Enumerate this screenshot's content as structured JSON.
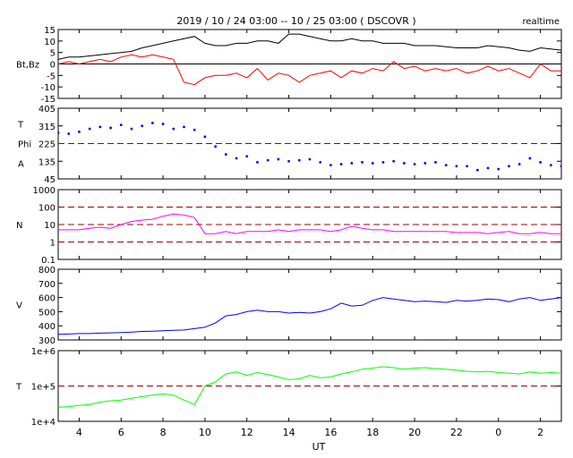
{
  "title": "2019 / 10 / 24   03:00 -- 10 / 25   03:00 ( DSCOVR )",
  "mode": "realtime",
  "x_axis": {
    "label": "UT",
    "tick_labels": [
      "4",
      "6",
      "8",
      "10",
      "12",
      "14",
      "16",
      "18",
      "20",
      "22",
      "0",
      "2"
    ],
    "tick_hours": [
      4,
      6,
      8,
      10,
      12,
      14,
      16,
      18,
      20,
      22,
      24,
      26
    ],
    "range_hours": [
      3,
      27
    ]
  },
  "colors": {
    "bt": "#000000",
    "bz": "#ff0000",
    "phi": "#0000ff",
    "density": "#ff00ff",
    "speed": "#0000ff",
    "temperature": "#00ff00",
    "reference_line": "#a00000",
    "axis": "#000000"
  },
  "chart_data": [
    {
      "type": "line",
      "panel": "magnetic-field",
      "ylabel": "Bt,Bz",
      "ylim": [
        -15,
        15
      ],
      "y_scale": "linear",
      "tick_labels": [
        "15",
        "10",
        "5",
        "0",
        "-5",
        "-10",
        "-15"
      ],
      "tick_values": [
        15,
        10,
        5,
        0,
        -5,
        -10,
        -15
      ],
      "reference_lines": [
        {
          "value": 0,
          "style": "solid"
        }
      ],
      "series": [
        {
          "key": "bt",
          "x": [
            3,
            3.5,
            4,
            4.5,
            5,
            5.5,
            6,
            6.5,
            7,
            7.5,
            8,
            8.5,
            9,
            9.5,
            10,
            10.5,
            11,
            11.5,
            12,
            12.5,
            13,
            13.5,
            14,
            14.5,
            15,
            15.5,
            16,
            16.5,
            17,
            17.5,
            18,
            18.5,
            19,
            19.5,
            20,
            20.5,
            21,
            21.5,
            22,
            22.5,
            23,
            23.5,
            24,
            24.5,
            25,
            25.5,
            26,
            26.5,
            27
          ],
          "values": [
            2,
            3,
            3,
            3.5,
            4,
            4.5,
            5,
            5.5,
            7,
            8,
            9,
            10,
            11,
            12,
            9,
            8,
            8,
            9,
            9,
            10,
            10,
            9,
            13,
            13,
            12,
            11,
            10,
            10,
            11,
            10,
            10,
            9,
            9,
            9,
            8,
            8,
            8,
            7.5,
            7,
            7,
            7,
            8,
            7.5,
            7,
            6,
            5.5,
            7,
            6.5,
            6
          ]
        },
        {
          "key": "bz",
          "x": [
            3,
            3.5,
            4,
            4.5,
            5,
            5.5,
            6,
            6.5,
            7,
            7.5,
            8,
            8.5,
            9,
            9.5,
            10,
            10.5,
            11,
            11.5,
            12,
            12.5,
            13,
            13.5,
            14,
            14.5,
            15,
            15.5,
            16,
            16.5,
            17,
            17.5,
            18,
            18.5,
            19,
            19.5,
            20,
            20.5,
            21,
            21.5,
            22,
            22.5,
            23,
            23.5,
            24,
            24.5,
            25,
            25.5,
            26,
            26.5,
            27
          ],
          "values": [
            0,
            1,
            0,
            1,
            2,
            1,
            3,
            4,
            3,
            4,
            3,
            2,
            -8,
            -9,
            -6,
            -5,
            -5,
            -4,
            -6,
            -2,
            -7,
            -4,
            -5,
            -8,
            -5,
            -4,
            -3,
            -6,
            -3,
            -4,
            -2,
            -3,
            1,
            -2,
            -1,
            -3,
            -2,
            -3,
            -2,
            -4,
            -3,
            -1,
            -3,
            -2,
            -4,
            -6,
            0,
            -3,
            -3
          ]
        }
      ]
    },
    {
      "type": "scatter",
      "panel": "phi-angle",
      "ylabel_lines": [
        "T",
        "Phi",
        "A"
      ],
      "ylim": [
        45,
        405
      ],
      "y_scale": "linear",
      "tick_labels": [
        "405",
        "315",
        "225",
        "135",
        "45"
      ],
      "tick_values": [
        405,
        315,
        225,
        135,
        45
      ],
      "reference_lines": [
        {
          "value": 225,
          "style": "dashed"
        }
      ],
      "series": [
        {
          "key": "phi",
          "x": [
            3,
            3.5,
            4,
            4.5,
            5,
            5.5,
            6,
            6.5,
            7,
            7.5,
            8,
            8.5,
            9,
            9.5,
            10,
            10.5,
            11,
            11.5,
            12,
            12.5,
            13,
            13.5,
            14,
            14.5,
            15,
            15.5,
            16,
            16.5,
            17,
            17.5,
            18,
            18.5,
            19,
            19.5,
            20,
            20.5,
            21,
            21.5,
            22,
            22.5,
            23,
            23.5,
            24,
            24.5,
            25,
            25.5,
            26,
            26.5,
            27
          ],
          "values": [
            280,
            275,
            285,
            300,
            310,
            305,
            320,
            300,
            315,
            330,
            325,
            300,
            310,
            295,
            260,
            210,
            170,
            150,
            160,
            130,
            140,
            145,
            135,
            140,
            145,
            130,
            115,
            120,
            125,
            130,
            125,
            130,
            135,
            125,
            120,
            125,
            130,
            115,
            110,
            110,
            90,
            100,
            95,
            110,
            120,
            150,
            130,
            115,
            110
          ]
        }
      ]
    },
    {
      "type": "line",
      "panel": "density",
      "ylabel": "N",
      "ylim": [
        0.1,
        1000
      ],
      "y_scale": "log",
      "tick_labels": [
        "1000",
        "100",
        "10",
        "1",
        "0.1"
      ],
      "tick_values": [
        1000,
        100,
        10,
        1,
        0.1
      ],
      "reference_lines": [
        {
          "value": 100,
          "style": "dashed"
        },
        {
          "value": 10,
          "style": "dashed"
        },
        {
          "value": 1,
          "style": "dashed"
        }
      ],
      "series": [
        {
          "key": "density",
          "x": [
            3,
            3.5,
            4,
            4.5,
            5,
            5.5,
            6,
            6.5,
            7,
            7.5,
            8,
            8.5,
            9,
            9.5,
            10,
            10.5,
            11,
            11.5,
            12,
            12.5,
            13,
            13.5,
            14,
            14.5,
            15,
            15.5,
            16,
            16.5,
            17,
            17.5,
            18,
            18.5,
            19,
            19.5,
            20,
            20.5,
            21,
            21.5,
            22,
            22.5,
            23,
            23.5,
            24,
            24.5,
            25,
            25.5,
            26,
            26.5,
            27
          ],
          "values": [
            5,
            5,
            5,
            6,
            7,
            6,
            10,
            15,
            18,
            20,
            30,
            40,
            35,
            25,
            3,
            3,
            4,
            3,
            4,
            4,
            4,
            5,
            4,
            5,
            5,
            5,
            4,
            5,
            8,
            6,
            5,
            5,
            4,
            4,
            4,
            4,
            4,
            4,
            3.5,
            3.5,
            3.5,
            3,
            3.5,
            4,
            3,
            3,
            3.5,
            3,
            3
          ]
        }
      ]
    },
    {
      "type": "line",
      "panel": "speed",
      "ylabel": "V",
      "ylim": [
        300,
        800
      ],
      "y_scale": "linear",
      "tick_labels": [
        "800",
        "700",
        "600",
        "500",
        "400",
        "300"
      ],
      "tick_values": [
        800,
        700,
        600,
        500,
        400,
        300
      ],
      "reference_lines": [],
      "series": [
        {
          "key": "speed",
          "x": [
            3,
            3.5,
            4,
            4.5,
            5,
            5.5,
            6,
            6.5,
            7,
            7.5,
            8,
            8.5,
            9,
            9.5,
            10,
            10.5,
            11,
            11.5,
            12,
            12.5,
            13,
            13.5,
            14,
            14.5,
            15,
            15.5,
            16,
            16.5,
            17,
            17.5,
            18,
            18.5,
            19,
            19.5,
            20,
            20.5,
            21,
            21.5,
            22,
            22.5,
            23,
            23.5,
            24,
            24.5,
            25,
            25.5,
            26,
            26.5,
            27
          ],
          "values": [
            340,
            342,
            345,
            345,
            348,
            350,
            352,
            355,
            360,
            362,
            365,
            368,
            370,
            380,
            390,
            420,
            470,
            480,
            500,
            510,
            500,
            500,
            490,
            495,
            490,
            500,
            520,
            560,
            540,
            545,
            580,
            600,
            590,
            580,
            570,
            575,
            570,
            565,
            580,
            575,
            580,
            590,
            585,
            570,
            590,
            600,
            580,
            590,
            600
          ]
        }
      ]
    },
    {
      "type": "line",
      "panel": "temperature",
      "ylabel": "T",
      "ylim": [
        10000,
        1000000
      ],
      "y_scale": "log",
      "tick_labels": [
        "1e+6",
        "1e+5",
        "1e+4"
      ],
      "tick_values": [
        1000000,
        100000,
        10000
      ],
      "reference_lines": [
        {
          "value": 100000,
          "style": "dashed"
        }
      ],
      "series": [
        {
          "key": "temperature",
          "x": [
            3,
            3.5,
            4,
            4.5,
            5,
            5.5,
            6,
            6.5,
            7,
            7.5,
            8,
            8.5,
            9,
            9.5,
            10,
            10.5,
            11,
            11.5,
            12,
            12.5,
            13,
            13.5,
            14,
            14.5,
            15,
            15.5,
            16,
            16.5,
            17,
            17.5,
            18,
            18.5,
            19,
            19.5,
            20,
            20.5,
            21,
            21.5,
            22,
            22.5,
            23,
            23.5,
            24,
            24.5,
            25,
            25.5,
            26,
            26.5,
            27
          ],
          "values": [
            25000,
            26000,
            28000,
            30000,
            35000,
            38000,
            40000,
            45000,
            50000,
            55000,
            60000,
            55000,
            40000,
            30000,
            100000,
            130000,
            220000,
            250000,
            200000,
            240000,
            210000,
            180000,
            150000,
            160000,
            200000,
            170000,
            180000,
            220000,
            250000,
            300000,
            320000,
            350000,
            330000,
            300000,
            320000,
            330000,
            310000,
            300000,
            280000,
            260000,
            250000,
            260000,
            240000,
            230000,
            220000,
            250000,
            230000,
            240000,
            230000
          ]
        }
      ]
    }
  ]
}
